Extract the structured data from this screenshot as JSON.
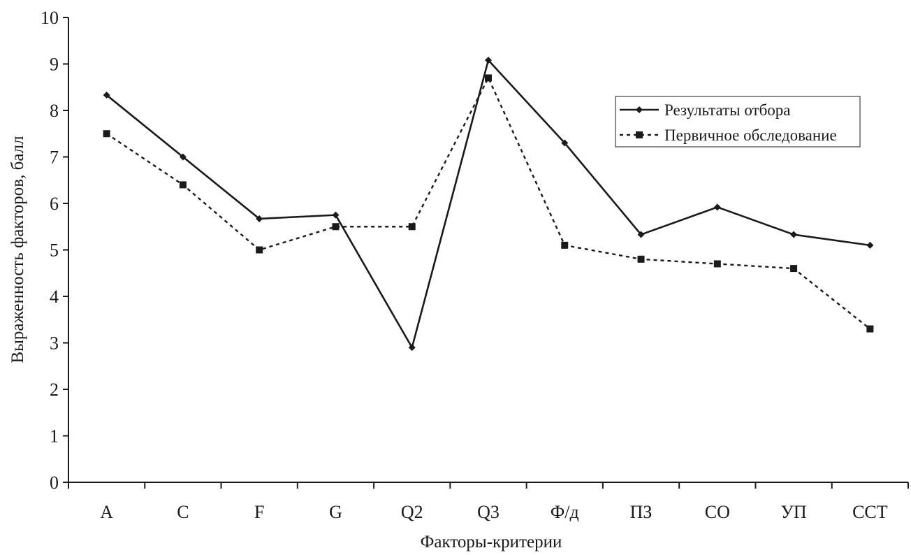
{
  "chart_data": {
    "type": "line",
    "title": "",
    "xlabel": "Факторы-критерии",
    "ylabel": "Выраженность факторов, балл",
    "ylim": [
      0,
      10
    ],
    "yticks": [
      0,
      1,
      2,
      3,
      4,
      5,
      6,
      7,
      8,
      9,
      10
    ],
    "grid": false,
    "legend_position": "top-right",
    "categories": [
      "A",
      "C",
      "F",
      "G",
      "Q2",
      "Q3",
      "Ф/д",
      "ПЗ",
      "СО",
      "УП",
      "ССТ"
    ],
    "series": [
      {
        "name": "Результаты отбора",
        "line_style": "solid",
        "marker": "diamond",
        "color": "#1a1a1a",
        "values": [
          8.33,
          7.0,
          5.67,
          5.75,
          2.9,
          9.08,
          7.3,
          5.33,
          5.92,
          5.33,
          5.1
        ]
      },
      {
        "name": "Первичное обследование",
        "line_style": "dotted",
        "marker": "square",
        "color": "#1a1a1a",
        "values": [
          7.5,
          6.4,
          5.0,
          5.5,
          5.5,
          8.7,
          5.1,
          4.8,
          4.7,
          4.6,
          3.3
        ]
      }
    ]
  }
}
